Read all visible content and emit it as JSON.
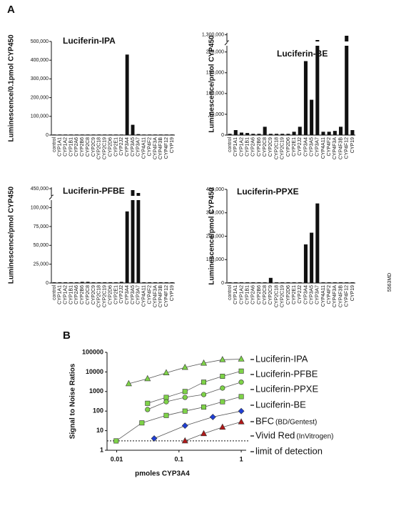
{
  "panels": {
    "a": "A",
    "b": "B"
  },
  "code": "5563MD",
  "chart_data": [
    {
      "type": "bar",
      "title": "Luciferin-IPA",
      "y_label": "Luminescence/0.1pmol CYP450",
      "color": "#111111",
      "categories": [
        "control",
        "CYP1A1",
        "CYP1A2",
        "CYP1B1",
        "CYP2A6",
        "CYP2B6",
        "CYP2C8",
        "CYP2C9",
        "CYP2C18",
        "CYP2C19",
        "CYP2D6",
        "CYP2E1",
        "CYP2J2",
        "CYP3A4",
        "CYP3A5",
        "CYP3A7",
        "CYP4A11",
        "CYP4F2",
        "CYP4F3A",
        "CYP4F3B",
        "CYP4F12",
        "CYP19"
      ],
      "values": [
        0,
        0,
        0,
        0,
        0,
        0,
        0,
        0,
        0,
        0,
        0,
        0,
        0,
        430000,
        55000,
        5000,
        0,
        0,
        0,
        0,
        0,
        0
      ],
      "ylim": [
        0,
        500000
      ],
      "yticks": [
        0,
        {
          "value": 100000,
          "label": "100,000"
        },
        {
          "value": 200000,
          "label": "200,000"
        },
        {
          "value": 300000,
          "label": "300,000"
        },
        {
          "value": 400000,
          "label": "400,000"
        },
        {
          "value": 500000,
          "label": "500,000"
        }
      ]
    },
    {
      "type": "bar",
      "title": "Luciferin-BE",
      "y_label": "Luminescence/pmol CYP450",
      "color": "#111111",
      "categories": [
        "control",
        "CYP1A1",
        "CYP1A2",
        "CYP1B1",
        "CYP2A6",
        "CYP2B6",
        "CYP2C8",
        "CYP2C9",
        "CYP2C18",
        "CYP2C19",
        "CYP2D6",
        "CYP2E1",
        "CYP2J2",
        "CYP3A4",
        "CYP3A5",
        "CYP3A7",
        "CYP4A11",
        "CYP4F2",
        "CYP4F3A",
        "CYP4F3B",
        "CYP4F12",
        "CYP19"
      ],
      "values": [
        3000,
        12000,
        6000,
        5000,
        3000,
        3000,
        20000,
        3000,
        3000,
        3000,
        3000,
        8000,
        20000,
        178000,
        85000,
        1245000,
        8000,
        8000,
        10000,
        20000,
        1290000,
        12000
      ],
      "ylim": [
        0,
        1320000
      ],
      "y_break": [
        215000,
        1230000
      ],
      "yticks": [
        0,
        {
          "value": 50000,
          "label": "50,000"
        },
        {
          "value": 100000,
          "label": "100,000"
        },
        {
          "value": 150000,
          "label": "150,000"
        },
        {
          "value": 200000,
          "label": "200,000"
        },
        {
          "value": 1300000,
          "label": "1,300,000"
        }
      ]
    },
    {
      "type": "bar",
      "title": "Luciferin-PFBE",
      "y_label": "Luminescence/pmol CYP450",
      "color": "#111111",
      "categories": [
        "control",
        "CYP1A1",
        "CYP1A2",
        "CYP1B1",
        "CYP2A6",
        "CYP2B6",
        "CYP2C8",
        "CYP2C9",
        "CYP2C18",
        "CYP2C19",
        "CYP2D6",
        "CYP2E1",
        "CYP2J2",
        "CYP3A4",
        "CYP3A5",
        "CYP3A7",
        "CYP4A11",
        "CYP4F2",
        "CYP4F3A",
        "CYP4F3B",
        "CYP4F12",
        "CYP19"
      ],
      "values": [
        1000,
        1000,
        1000,
        1000,
        1000,
        1500,
        1500,
        1000,
        1000,
        1000,
        1000,
        1000,
        1500,
        95000,
        440000,
        420000,
        1000,
        1000,
        1000,
        1000,
        1000,
        1000
      ],
      "ylim": [
        0,
        460000
      ],
      "y_break": [
        110000,
        400000
      ],
      "yticks": [
        0,
        {
          "value": 25000,
          "label": "25,000"
        },
        {
          "value": 50000,
          "label": "50,000"
        },
        {
          "value": 75000,
          "label": "75,000"
        },
        {
          "value": 100000,
          "label": "100,000"
        },
        {
          "value": 450000,
          "label": "450,000"
        }
      ]
    },
    {
      "type": "bar",
      "title": "Luciferin-PPXE",
      "y_label": "Luminescence/pmol CYP450",
      "color": "#111111",
      "categories": [
        "control",
        "CYP1A1",
        "CYP1A2",
        "CYP1B1",
        "CYP2A6",
        "CYP2B6",
        "CYP2C8",
        "CYP2C9",
        "CYP2C18",
        "CYP2C19",
        "CYP2D6",
        "CYP2E1",
        "CYP2J2",
        "CYP3A4",
        "CYP3A5",
        "CYP3A7",
        "CYP4A11",
        "CYP4F2",
        "CYP4F3A",
        "CYP4F3B",
        "CYP4F12",
        "CYP19"
      ],
      "values": [
        3000,
        3000,
        3000,
        3000,
        3000,
        3000,
        3000,
        22000,
        3000,
        3000,
        3000,
        3000,
        3000,
        165000,
        215000,
        340000,
        3000,
        3000,
        3000,
        3000,
        3000,
        3000
      ],
      "ylim": [
        0,
        400000
      ],
      "yticks": [
        0,
        {
          "value": 100000,
          "label": "100,000"
        },
        {
          "value": 200000,
          "label": "200,000"
        },
        {
          "value": 300000,
          "label": "300,000"
        },
        {
          "value": 400000,
          "label": "400,000"
        }
      ]
    },
    {
      "type": "line",
      "x_label": "pmoles CYP3A4",
      "y_label": "Signal to Noise Ratios",
      "x_log": true,
      "y_log": true,
      "xlim": [
        0.007,
        1.2
      ],
      "ylim": [
        1,
        100000
      ],
      "xticks": [
        0.01,
        0.1,
        1
      ],
      "yticks": [
        1,
        10,
        100,
        1000,
        10000,
        100000
      ],
      "limit_of_detection": {
        "value": 3,
        "label": "limit of detection"
      },
      "series": [
        {
          "name": "Luciferin-IPA",
          "color": "#7ed348",
          "marker": "triangle",
          "x": [
            0.0156,
            0.0313,
            0.0625,
            0.125,
            0.25,
            0.5,
            1
          ],
          "values": [
            2500,
            4500,
            9000,
            17000,
            28000,
            42000,
            45000
          ]
        },
        {
          "name": "Luciferin-PFBE",
          "color": "#7ed348",
          "marker": "square",
          "x": [
            0.0313,
            0.0625,
            0.125,
            0.25,
            0.5,
            1
          ],
          "values": [
            250,
            500,
            1000,
            3000,
            6000,
            11000
          ]
        },
        {
          "name": "Luciferin-PPXE",
          "color": "#7ed348",
          "marker": "circle",
          "x": [
            0.0313,
            0.0625,
            0.125,
            0.25,
            0.5,
            1
          ],
          "values": [
            120,
            300,
            500,
            700,
            1500,
            3000
          ]
        },
        {
          "name": "Luciferin-BE",
          "color": "#7ed348",
          "marker": "square",
          "x": [
            0.0098,
            0.0254,
            0.0625,
            0.125,
            0.25,
            0.5,
            1
          ],
          "values": [
            3,
            25,
            60,
            100,
            160,
            300,
            550
          ]
        },
        {
          "name": "BFC",
          "note": "(BD/Gentest)",
          "color": "#1f3fd6",
          "marker": "diamond",
          "x": [
            0.04,
            0.125,
            0.35,
            1
          ],
          "values": [
            4,
            18,
            50,
            100
          ]
        },
        {
          "name": "Vivid Red",
          "note": "(InVitrogen)",
          "color": "#b01818",
          "marker": "triangle",
          "x": [
            0.125,
            0.25,
            0.5,
            1
          ],
          "values": [
            3,
            7,
            15,
            28
          ]
        }
      ]
    }
  ]
}
